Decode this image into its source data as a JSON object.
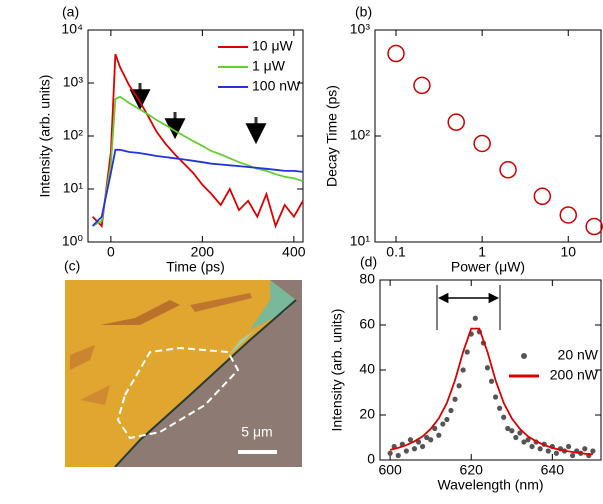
{
  "chart_data": [
    {
      "type": "line",
      "panel_label": "(a)",
      "x_label": "Time (ps)",
      "y_label": "Intensity (arb. units)",
      "xlim": [
        -50,
        420
      ],
      "xticks": [
        0,
        200,
        400
      ],
      "ylim": [
        1,
        10000
      ],
      "ylog": true,
      "yticks": [
        {
          "value": 1,
          "label": "10⁰"
        },
        {
          "value": 10,
          "label": "10¹"
        },
        {
          "value": 100,
          "label": "10²"
        },
        {
          "value": 1000,
          "label": "10³"
        },
        {
          "value": 10000,
          "label": "10⁴"
        }
      ],
      "x": [
        -40,
        -20,
        0,
        10,
        20,
        40,
        60,
        80,
        100,
        120,
        140,
        160,
        180,
        200,
        220,
        240,
        260,
        280,
        300,
        320,
        340,
        360,
        380,
        400,
        420
      ],
      "series": [
        {
          "name": "10 μW",
          "color": "#dd0000",
          "values": [
            3,
            2,
            50,
            3500,
            2000,
            900,
            500,
            250,
            120,
            70,
            45,
            30,
            20,
            12,
            8,
            5,
            10,
            4,
            6,
            3,
            8,
            2,
            5,
            3,
            6
          ]
        },
        {
          "name": "1 μW",
          "color": "#66cc33",
          "values": [
            2,
            2.5,
            30,
            500,
            550,
            420,
            330,
            260,
            200,
            160,
            125,
            100,
            80,
            65,
            52,
            45,
            38,
            32,
            28,
            24,
            22,
            19,
            17,
            16,
            14
          ]
        },
        {
          "name": "100 nW",
          "color": "#2233dd",
          "values": [
            2,
            3,
            20,
            55,
            55,
            50,
            48,
            45,
            42,
            40,
            38,
            36,
            34,
            32,
            30,
            29,
            28,
            27,
            26,
            25,
            24,
            23,
            22,
            22,
            21
          ]
        }
      ],
      "legend": "upper right"
    },
    {
      "type": "scatter",
      "panel_label": "(b)",
      "x_label": "Power (μW)",
      "y_label": "Decay Time (ps)",
      "xlog": true,
      "xlim": [
        0.057,
        24
      ],
      "xticks": [
        0.1,
        1,
        10
      ],
      "ylog": true,
      "ylim": [
        10,
        1000
      ],
      "yticks": [
        {
          "value": 10,
          "label": "10¹"
        },
        {
          "value": 100,
          "label": "10²"
        },
        {
          "value": 1000,
          "label": "10³"
        }
      ],
      "x": [
        0.1,
        0.2,
        0.5,
        1,
        2,
        5,
        10,
        20
      ],
      "values": [
        600,
        300,
        135,
        85,
        48,
        27,
        18,
        14
      ],
      "color": "#cc0000",
      "marker": "open-circle"
    },
    {
      "type": "scatter",
      "panel_label": "(d)",
      "x_label": "Wavelength (nm)",
      "y_label": "Intensity (arb. units)",
      "xlim": [
        597.5,
        652
      ],
      "xticks": [
        600,
        620,
        640
      ],
      "ylim": [
        0,
        80
      ],
      "yticks": [
        0,
        20,
        40,
        60,
        80
      ],
      "series": [
        {
          "name": "20 nW",
          "color": "#555555",
          "style": "markers",
          "x": [
            600,
            601,
            602,
            603,
            604,
            605,
            606,
            607,
            608,
            609,
            610,
            611,
            612,
            613,
            614,
            615,
            616,
            617,
            618,
            619,
            620,
            621,
            622,
            623,
            624,
            625,
            626,
            627,
            628,
            629,
            630,
            631,
            632,
            633,
            634,
            635,
            636,
            637,
            638,
            639,
            640,
            641,
            642,
            643,
            644,
            645,
            646,
            647,
            648,
            649,
            650
          ],
          "values": [
            3,
            6,
            2,
            7,
            4,
            9,
            5,
            8,
            6,
            10,
            9,
            14,
            11,
            16,
            18,
            22,
            27,
            33,
            40,
            48,
            56,
            63,
            57,
            52,
            41,
            35,
            28,
            23,
            19,
            14,
            13,
            10,
            12,
            8,
            9,
            6,
            8,
            5,
            7,
            4,
            6,
            3,
            5,
            4,
            6,
            2,
            4,
            3,
            5,
            2,
            4
          ]
        },
        {
          "name": "200 nW",
          "color": "#dd0000",
          "style": "line",
          "x": [
            600,
            602,
            604,
            606,
            608,
            610,
            612,
            614,
            616,
            618,
            620,
            622,
            624,
            626,
            628,
            630,
            632,
            634,
            636,
            638,
            640,
            642,
            644,
            646,
            648,
            650
          ],
          "values": [
            4.5,
            5.4,
            6.6,
            8.3,
            10.5,
            13.8,
            18.5,
            25.4,
            35.4,
            48,
            58.4,
            58.4,
            48,
            35.4,
            25.4,
            18.5,
            13.8,
            10.5,
            8.3,
            6.6,
            5.4,
            4.5,
            3.8,
            3.3,
            2.8,
            2.5
          ]
        }
      ],
      "legend": "right"
    }
  ],
  "image": {
    "panel_label": "(c)",
    "scale_bar": "5 μm"
  }
}
